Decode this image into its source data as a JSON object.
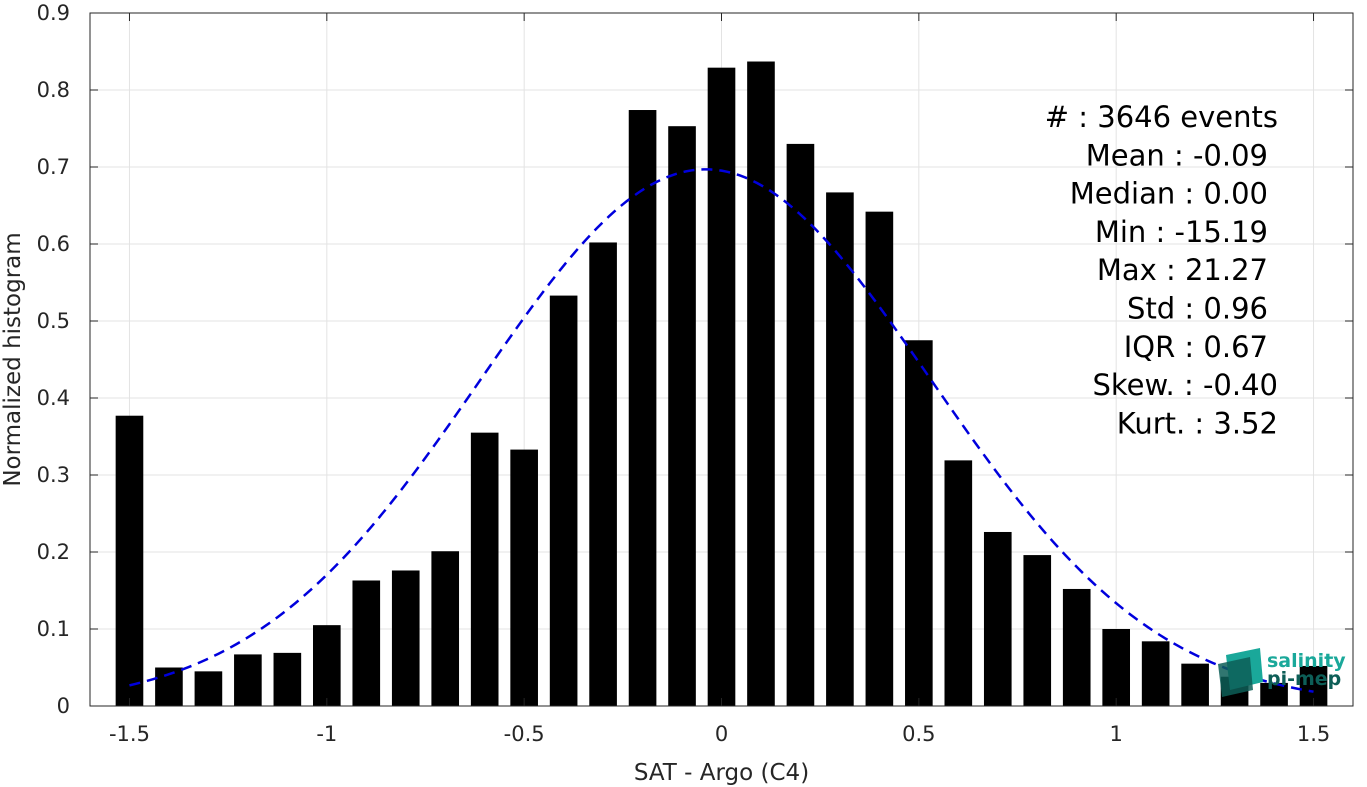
{
  "chart_data": {
    "type": "bar",
    "xlabel": "SAT - Argo (C4)",
    "ylabel": "Normalized histogram",
    "xlim": [
      -1.6,
      1.6
    ],
    "ylim": [
      0,
      0.9
    ],
    "grid": true,
    "x_ticks": [
      -1.5,
      -1,
      -0.5,
      0,
      0.5,
      1,
      1.5
    ],
    "x_tick_labels": [
      "-1.5",
      "-1",
      "-0.5",
      "0",
      "0.5",
      "1",
      "1.5"
    ],
    "y_ticks": [
      0,
      0.1,
      0.2,
      0.3,
      0.4,
      0.5,
      0.6,
      0.7,
      0.8,
      0.9
    ],
    "y_tick_labels": [
      "0",
      "0.1",
      "0.2",
      "0.3",
      "0.4",
      "0.5",
      "0.6",
      "0.7",
      "0.8",
      "0.9"
    ],
    "bar_color": "#000000",
    "bin_width": 0.1,
    "bars": [
      {
        "x": -1.5,
        "y": 0.377
      },
      {
        "x": -1.4,
        "y": 0.05
      },
      {
        "x": -1.3,
        "y": 0.045
      },
      {
        "x": -1.2,
        "y": 0.067
      },
      {
        "x": -1.1,
        "y": 0.069
      },
      {
        "x": -1.0,
        "y": 0.105
      },
      {
        "x": -0.9,
        "y": 0.163
      },
      {
        "x": -0.8,
        "y": 0.176
      },
      {
        "x": -0.7,
        "y": 0.201
      },
      {
        "x": -0.6,
        "y": 0.355
      },
      {
        "x": -0.5,
        "y": 0.333
      },
      {
        "x": -0.4,
        "y": 0.533
      },
      {
        "x": -0.3,
        "y": 0.602
      },
      {
        "x": -0.2,
        "y": 0.774
      },
      {
        "x": -0.1,
        "y": 0.753
      },
      {
        "x": 0.0,
        "y": 0.829
      },
      {
        "x": 0.1,
        "y": 0.837
      },
      {
        "x": 0.2,
        "y": 0.73
      },
      {
        "x": 0.3,
        "y": 0.667
      },
      {
        "x": 0.4,
        "y": 0.642
      },
      {
        "x": 0.5,
        "y": 0.475
      },
      {
        "x": 0.6,
        "y": 0.319
      },
      {
        "x": 0.7,
        "y": 0.226
      },
      {
        "x": 0.8,
        "y": 0.196
      },
      {
        "x": 0.9,
        "y": 0.152
      },
      {
        "x": 1.0,
        "y": 0.1
      },
      {
        "x": 1.1,
        "y": 0.084
      },
      {
        "x": 1.2,
        "y": 0.055
      },
      {
        "x": 1.3,
        "y": 0.038
      },
      {
        "x": 1.4,
        "y": 0.03
      },
      {
        "x": 1.5,
        "y": 0.052
      }
    ],
    "fit_curve": {
      "type": "gaussian",
      "style": "dashed",
      "color": "#0000dd",
      "mean": -0.04,
      "sigma": 0.572,
      "peak": 0.697,
      "x_range": [
        -1.5,
        1.5
      ]
    },
    "stats": [
      {
        "label": "#  : 3646 events"
      },
      {
        "label": "Mean : -0.09"
      },
      {
        "label": "Median : 0.00"
      },
      {
        "label": "Min : -15.19"
      },
      {
        "label": "Max : 21.27"
      },
      {
        "label": "Std : 0.96"
      },
      {
        "label": "IQR : 0.67"
      },
      {
        "label": "Skew. : -0.40"
      },
      {
        "label": "Kurt. : 3.52"
      }
    ]
  },
  "logo": {
    "line1": "salinity",
    "line2": "pi-mep",
    "color": "#1aa89a",
    "dark_color": "#0d5e57"
  }
}
